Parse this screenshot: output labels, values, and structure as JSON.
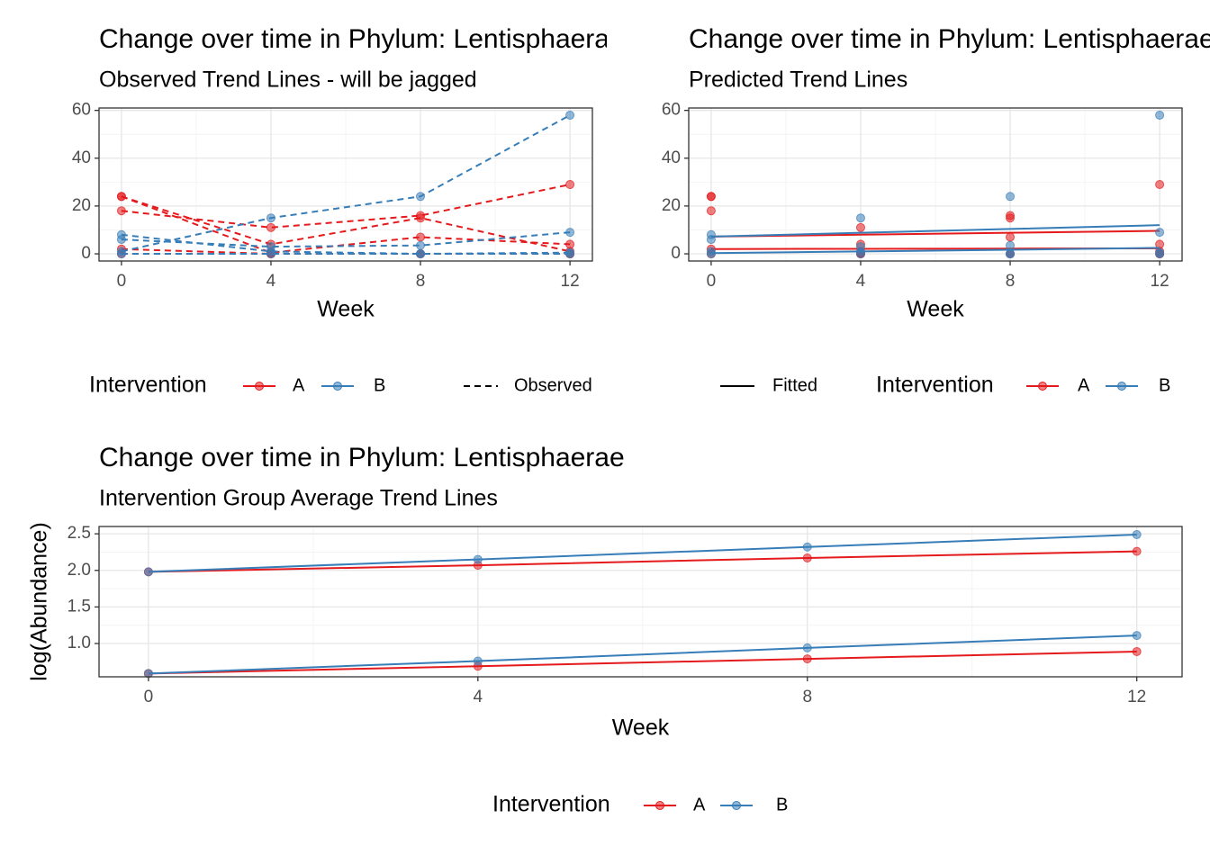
{
  "chart_data": [
    {
      "type": "line",
      "title": "Change over time in Phylum: Lentisphaerae",
      "subtitle": "Observed Trend Lines - will be jagged",
      "x_label": "Week",
      "x": [
        0,
        4,
        8,
        12
      ],
      "xlim": [
        -0.6,
        12.6
      ],
      "xticks": [
        0,
        4,
        8,
        12
      ],
      "ylim": [
        -3,
        61
      ],
      "yticks": [
        0,
        20,
        40,
        60
      ],
      "grid": true,
      "legend": {
        "title": "Intervention",
        "linetype_label": "Observed",
        "linetype": "dashed"
      },
      "groups": [
        {
          "name": "A",
          "color": "#E41A1C",
          "subjects": [
            [
              18,
              11,
              16,
              29
            ],
            [
              24,
              4,
              15,
              1
            ],
            [
              24,
              0.5,
              7,
              4
            ],
            [
              2,
              0,
              0,
              0
            ],
            [
              0,
              0,
              0,
              0
            ]
          ]
        },
        {
          "name": "B",
          "color": "#377EB8",
          "subjects": [
            [
              1,
              15,
              24,
              58
            ],
            [
              8,
              1,
              0,
              0.5
            ],
            [
              6,
              3,
              3.5,
              9
            ],
            [
              0,
              0,
              0,
              0
            ]
          ]
        }
      ]
    },
    {
      "type": "line",
      "title": "Change over time in Phylum: Lentisphaerae",
      "subtitle": "Predicted Trend Lines",
      "x_label": "Week",
      "x": [
        0,
        4,
        8,
        12
      ],
      "xlim": [
        -0.6,
        12.6
      ],
      "xticks": [
        0,
        4,
        8,
        12
      ],
      "ylim": [
        -3,
        61
      ],
      "yticks": [
        0,
        20,
        40,
        60
      ],
      "grid": true,
      "legend": {
        "title": "Intervention",
        "linetype_label": "Fitted",
        "linetype": "solid"
      },
      "groups": [
        {
          "name": "A",
          "color": "#E41A1C",
          "subjects": [
            [
              18,
              11,
              16,
              29
            ],
            [
              24,
              4,
              15,
              1
            ],
            [
              24,
              0.5,
              7,
              4
            ],
            [
              2,
              0,
              0,
              0
            ],
            [
              0,
              0,
              0,
              0
            ]
          ],
          "fitted": [
            [
              7.2,
              8,
              8.8,
              9.6
            ],
            [
              2,
              2.1,
              2.2,
              2.3
            ]
          ]
        },
        {
          "name": "B",
          "color": "#377EB8",
          "subjects": [
            [
              1,
              15,
              24,
              58
            ],
            [
              8,
              1,
              0,
              0.5
            ],
            [
              6,
              3,
              3.5,
              9
            ],
            [
              0,
              0,
              0,
              0
            ]
          ],
          "fitted": [
            [
              7.2,
              8.8,
              10.4,
              12
            ],
            [
              0.3,
              1,
              1.7,
              2.5
            ]
          ]
        }
      ]
    },
    {
      "type": "line",
      "title": "Change over time in Phylum: Lentisphaerae",
      "subtitle": "Intervention Group Average Trend Lines",
      "x_label": "Week",
      "y_label": "log(Abundance)",
      "x": [
        0,
        4,
        8,
        12
      ],
      "xlim": [
        -0.6,
        12.55
      ],
      "xticks": [
        0,
        4,
        8,
        12
      ],
      "ylim": [
        0.545,
        2.6
      ],
      "yticks": [
        {
          "value": 1,
          "label": "1.0"
        },
        1.5,
        {
          "value": 2,
          "label": "2.0"
        },
        2.5
      ],
      "grid": true,
      "legend": {
        "title": "Intervention"
      },
      "groups": [
        {
          "name": "A",
          "color": "#E41A1C",
          "means": [
            [
              1.98,
              2.07,
              2.17,
              2.26
            ],
            [
              0.59,
              0.69,
              0.79,
              0.89
            ]
          ]
        },
        {
          "name": "B",
          "color": "#377EB8",
          "means": [
            [
              1.98,
              2.15,
              2.32,
              2.49
            ],
            [
              0.59,
              0.76,
              0.94,
              1.11
            ]
          ]
        }
      ]
    }
  ]
}
